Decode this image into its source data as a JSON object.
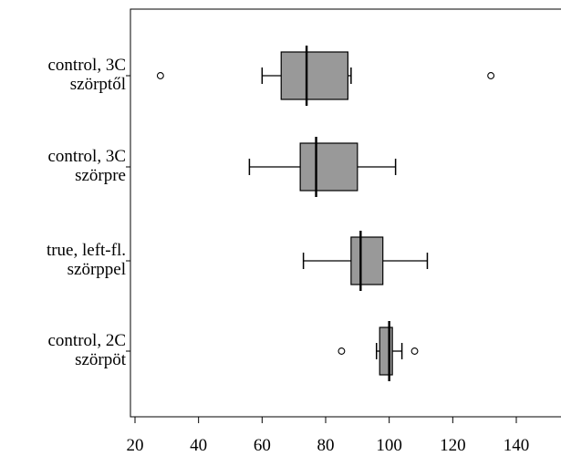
{
  "chart_data": {
    "type": "boxplot",
    "title": "",
    "xlabel": "",
    "ylabel": "",
    "xlim": [
      18,
      155
    ],
    "x_ticks": [
      20,
      40,
      60,
      80,
      100,
      120,
      140
    ],
    "grid": false,
    "legend": "none",
    "colors": {
      "box_fill": "#999999",
      "stroke": "#000000",
      "background": "#ffffff"
    },
    "groups": [
      {
        "label_lines": [
          "control, 3C",
          "szörptől"
        ],
        "whisker_low": 60,
        "q1": 66,
        "median": 74,
        "q3": 87,
        "whisker_high": 88,
        "outliers": [
          28,
          132
        ]
      },
      {
        "label_lines": [
          "control, 3C",
          "szörpre"
        ],
        "whisker_low": 56,
        "q1": 72,
        "median": 77,
        "q3": 90,
        "whisker_high": 102,
        "outliers": []
      },
      {
        "label_lines": [
          "true, left-fl.",
          "szörppel"
        ],
        "whisker_low": 73,
        "q1": 88,
        "median": 91,
        "q3": 98,
        "whisker_high": 112,
        "outliers": []
      },
      {
        "label_lines": [
          "control,  2C",
          "szörpöt"
        ],
        "whisker_low": 96,
        "q1": 97,
        "median": 100,
        "q3": 101,
        "whisker_high": 104,
        "outliers": [
          85,
          108
        ]
      }
    ]
  }
}
